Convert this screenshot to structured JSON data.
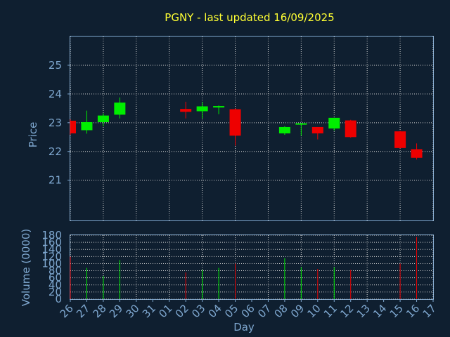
{
  "chart_data": {
    "type": "candlestick",
    "title": "PGNY - last updated 16/09/2025",
    "xlabel": "Day",
    "colors": {
      "background": "#0f1f30",
      "text": "#7ea7cf",
      "title": "#ffff33",
      "up": "#00ee00",
      "down": "#ee0000",
      "grid": "#d0d0d0"
    },
    "x_ticks": [
      "26",
      "27",
      "28",
      "29",
      "30",
      "31",
      "01",
      "02",
      "03",
      "04",
      "05",
      "06",
      "07",
      "08",
      "09",
      "10",
      "11",
      "12",
      "13",
      "14",
      "15",
      "16",
      "17"
    ],
    "price_panel": {
      "ylabel": "Price",
      "ylim": [
        19.6,
        26.0
      ],
      "yticks": [
        "21",
        "22",
        "23",
        "24",
        "25"
      ],
      "grid": true
    },
    "volume_panel": {
      "ylabel": "Volume (0000)",
      "ylim": [
        0,
        180
      ],
      "yticks": [
        "0",
        "20",
        "40",
        "60",
        "80",
        "100",
        "120",
        "140",
        "160",
        "180"
      ],
      "grid": true
    },
    "candles": [
      {
        "day": "26",
        "open": 23.07,
        "high": 23.12,
        "low": 22.58,
        "close": 22.63,
        "volume": 120
      },
      {
        "day": "27",
        "open": 22.74,
        "high": 23.42,
        "low": 22.62,
        "close": 23.02,
        "volume": 88
      },
      {
        "day": "28",
        "open": 23.02,
        "high": 23.33,
        "low": 22.88,
        "close": 23.25,
        "volume": 65
      },
      {
        "day": "29",
        "open": 23.28,
        "high": 23.88,
        "low": 23.15,
        "close": 23.7,
        "volume": 110
      },
      {
        "day": "02",
        "open": 23.48,
        "high": 23.73,
        "low": 23.15,
        "close": 23.38,
        "volume": 75
      },
      {
        "day": "03",
        "open": 23.4,
        "high": 23.72,
        "low": 23.15,
        "close": 23.57,
        "volume": 82
      },
      {
        "day": "04",
        "open": 23.53,
        "high": 23.6,
        "low": 23.3,
        "close": 23.58,
        "volume": 88
      },
      {
        "day": "05",
        "open": 23.47,
        "high": 23.5,
        "low": 22.2,
        "close": 22.55,
        "volume": 100
      },
      {
        "day": "08",
        "open": 22.63,
        "high": 22.88,
        "low": 22.58,
        "close": 22.85,
        "volume": 115
      },
      {
        "day": "09",
        "open": 22.97,
        "high": 22.99,
        "low": 22.55,
        "close": 22.98,
        "volume": 90
      },
      {
        "day": "10",
        "open": 22.85,
        "high": 22.85,
        "low": 22.42,
        "close": 22.63,
        "volume": 85
      },
      {
        "day": "11",
        "open": 22.8,
        "high": 23.17,
        "low": 22.73,
        "close": 23.17,
        "volume": 90
      },
      {
        "day": "12",
        "open": 23.08,
        "high": 23.1,
        "low": 22.48,
        "close": 22.5,
        "volume": 82
      },
      {
        "day": "15",
        "open": 22.7,
        "high": 22.72,
        "low": 22.1,
        "close": 22.12,
        "volume": 100
      },
      {
        "day": "16",
        "open": 22.08,
        "high": 22.28,
        "low": 21.72,
        "close": 21.78,
        "volume": 175
      }
    ]
  }
}
